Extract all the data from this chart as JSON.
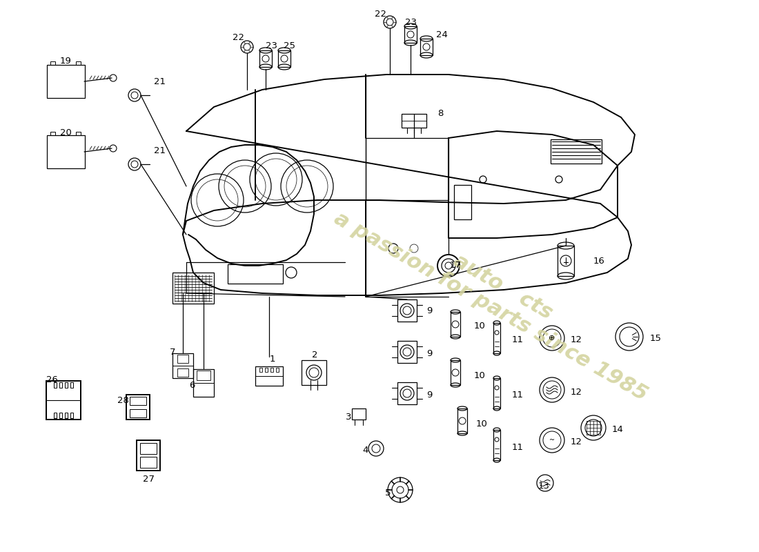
{
  "bg_color": "#ffffff",
  "line_color": "#000000",
  "watermark_color": "#d4d4a0",
  "lw_main": 1.4,
  "lw_thin": 0.9,
  "lw_thick": 2.0,
  "label_fontsize": 9.5
}
